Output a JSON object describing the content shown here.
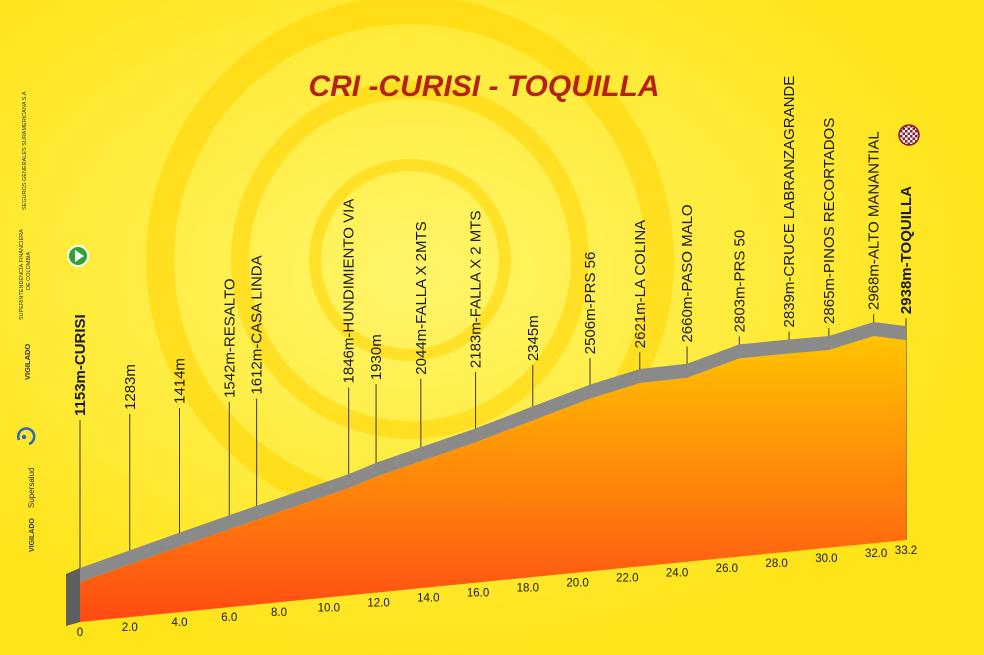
{
  "chart_data": {
    "type": "area",
    "title": "CRI -CURISI - TOQUILLA",
    "x_ticks": [
      "0",
      "2.0",
      "4.0",
      "6.0",
      "8.0",
      "10.0",
      "12.0",
      "14.0",
      "16.0",
      "18.0",
      "20.0",
      "22.0",
      "24.0",
      "26.0",
      "28.0",
      "30.0",
      "32.0",
      "33.2"
    ],
    "xlim": [
      0,
      33.2
    ],
    "profile": [
      {
        "x": 0,
        "y": 1153
      },
      {
        "x": 2.0,
        "y": 1283
      },
      {
        "x": 4.0,
        "y": 1414
      },
      {
        "x": 6.0,
        "y": 1542
      },
      {
        "x": 7.1,
        "y": 1612
      },
      {
        "x": 10.8,
        "y": 1846
      },
      {
        "x": 11.9,
        "y": 1930
      },
      {
        "x": 13.7,
        "y": 2044
      },
      {
        "x": 15.9,
        "y": 2183
      },
      {
        "x": 18.2,
        "y": 2345
      },
      {
        "x": 20.5,
        "y": 2506
      },
      {
        "x": 22.5,
        "y": 2621
      },
      {
        "x": 24.4,
        "y": 2660
      },
      {
        "x": 26.5,
        "y": 2803
      },
      {
        "x": 28.5,
        "y": 2839
      },
      {
        "x": 30.1,
        "y": 2865
      },
      {
        "x": 31.9,
        "y": 2968
      },
      {
        "x": 33.2,
        "y": 2938
      }
    ],
    "waypoints": [
      {
        "x": 0,
        "label": "1153m-CURISI",
        "bold": true
      },
      {
        "x": 2.0,
        "label": "1283m"
      },
      {
        "x": 4.0,
        "label": "1414m"
      },
      {
        "x": 6.0,
        "label": "1542m-RESALTO"
      },
      {
        "x": 7.1,
        "label": "1612m-CASA LINDA"
      },
      {
        "x": 10.8,
        "label": "1846m-HUNDIMIENTO VIA"
      },
      {
        "x": 11.9,
        "label": "1930m"
      },
      {
        "x": 13.7,
        "label": "2044m-FALLA X 2MTS"
      },
      {
        "x": 15.9,
        "label": "2183m-FALLA X 2 MTS"
      },
      {
        "x": 18.2,
        "label": "2345m"
      },
      {
        "x": 20.5,
        "label": "2506m-PRS 56"
      },
      {
        "x": 22.5,
        "label": "2621m-LA COLINA"
      },
      {
        "x": 24.4,
        "label": "2660m-PASO MALO"
      },
      {
        "x": 26.5,
        "label": "2803m-PRS 50"
      },
      {
        "x": 28.5,
        "label": "2839m-CRUCE LABRANZAGRANDE"
      },
      {
        "x": 30.1,
        "label": "2865m-PINOS RECORTADOS"
      },
      {
        "x": 31.9,
        "label": "2968m-ALTO MANANTIAL"
      },
      {
        "x": 33.2,
        "label": "2938m-TOQUILLA",
        "bold": true
      }
    ]
  },
  "side_text": {
    "vigilado_1": "VIGILADO",
    "superintendencia": "SUPERINTENDENCIA FINANCIERA",
    "de_colombia": "DE COLOMBIA",
    "seguros": "SEGUROS GENERALES SURAMERICANA S.A",
    "vigilado_2": "VIGILADO",
    "supersalud": "Supersalud"
  },
  "colors": {
    "background": "#ffe419",
    "title": "#b52318",
    "road": "#8a8a8a",
    "fill_top": "#ffc400",
    "fill_bottom": "#ff4a14",
    "start_icon": "#2fa335",
    "finish_icon": "#8b1a2c"
  },
  "icons": {
    "start": "play-circle-icon",
    "finish": "checkered-flag-icon",
    "supersalud": "supersalud-logo-icon"
  }
}
